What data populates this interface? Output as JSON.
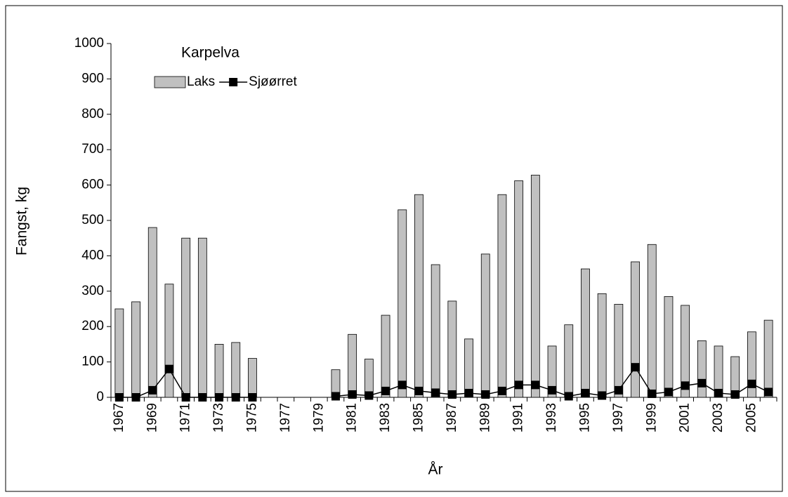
{
  "chart_data": {
    "type": "bar_line",
    "title": "Karpelva",
    "xlabel": "År",
    "ylabel": "Fangst, kg",
    "categories": [
      "1967",
      null,
      "1969",
      null,
      "1971",
      null,
      "1973",
      null,
      "1975",
      null,
      "1977",
      null,
      "1979",
      null,
      "1981",
      null,
      "1983",
      null,
      "1985",
      null,
      "1987",
      null,
      "1989",
      null,
      "1991",
      null,
      "1993",
      null,
      "1995",
      null,
      "1997",
      null,
      "1999",
      null,
      "2001",
      null,
      "2003",
      null,
      "2005",
      null
    ],
    "series": [
      {
        "name": "Laks",
        "type": "bar",
        "color": "#c0c0c0",
        "values": [
          250,
          270,
          480,
          320,
          450,
          450,
          150,
          155,
          110,
          null,
          null,
          null,
          null,
          78,
          178,
          108,
          232,
          530,
          573,
          375,
          272,
          165,
          405,
          573,
          612,
          628,
          145,
          205,
          363,
          293,
          263,
          383,
          432,
          285,
          260,
          160,
          145,
          115,
          185,
          218
        ]
      },
      {
        "name": "Sjøørret",
        "type": "line",
        "color": "#000000",
        "values": [
          0,
          0,
          20,
          80,
          0,
          0,
          0,
          0,
          0,
          null,
          null,
          null,
          null,
          3,
          8,
          5,
          18,
          35,
          18,
          13,
          8,
          12,
          8,
          18,
          35,
          35,
          20,
          3,
          12,
          5,
          20,
          85,
          10,
          15,
          33,
          40,
          12,
          8,
          38,
          15
        ]
      }
    ],
    "ylim": [
      0,
      1000
    ],
    "yticks": [
      0,
      100,
      200,
      300,
      400,
      500,
      600,
      700,
      800,
      900,
      1000
    ],
    "grid": false
  }
}
